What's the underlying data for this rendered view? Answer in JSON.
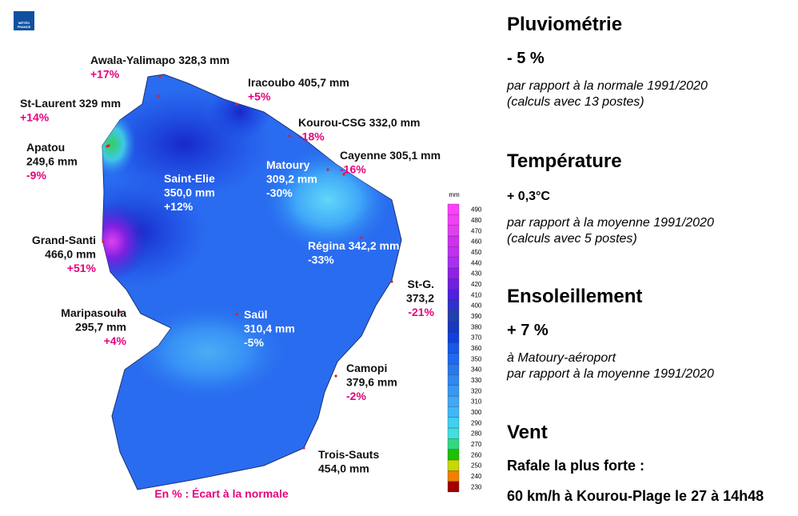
{
  "logo": [
    "MÉTÉO",
    "FRANCE"
  ],
  "map": {
    "stations": [
      {
        "label": [
          "Awala-Yalimapo 328,3 mm"
        ],
        "anomaly": "+17%"
      },
      {
        "label": [
          "Iracoubo 405,7 mm"
        ],
        "anomaly": "+5%"
      },
      {
        "label": [
          "St-Laurent 329 mm"
        ],
        "anomaly": "+14%"
      },
      {
        "label": [
          "Kourou-CSG 332,0 mm"
        ],
        "anomaly": "-18%"
      },
      {
        "label": [
          "Apatou",
          "249,6 mm"
        ],
        "anomaly": "-9%"
      },
      {
        "label": [
          "Cayenne 305,1 mm"
        ],
        "anomaly": "-16%"
      },
      {
        "label": [
          "Saint-Elie",
          "350,0 mm"
        ],
        "anomaly": "+12%"
      },
      {
        "label": [
          "Matoury",
          "309,2 mm"
        ],
        "anomaly": "-30%"
      },
      {
        "label": [
          "Grand-Santi",
          "466,0 mm"
        ],
        "anomaly": "+51%"
      },
      {
        "label": [
          "Régina 342,2 mm"
        ],
        "anomaly": "-33%"
      },
      {
        "label": [
          "St-G.",
          "373,2"
        ],
        "anomaly": "-21%"
      },
      {
        "label": [
          "Maripasoula",
          "295,7 mm"
        ],
        "anomaly": "+4%"
      },
      {
        "label": [
          "Saül",
          "310,4 mm"
        ],
        "anomaly": "-5%"
      },
      {
        "label": [
          "Camopi",
          "379,6 mm"
        ],
        "anomaly": "-2%"
      },
      {
        "label": [
          "Trois-Sauts",
          "454,0 mm"
        ]
      }
    ],
    "note": "En % : Écart à la normale",
    "scale": {
      "unit": "mm",
      "levels": [
        230,
        240,
        250,
        260,
        270,
        280,
        290,
        300,
        310,
        320,
        330,
        340,
        350,
        360,
        370,
        380,
        390,
        400,
        410,
        420,
        430,
        440,
        450,
        460,
        470,
        480,
        490
      ],
      "colors": [
        "#a00000",
        "#f08000",
        "#c8d800",
        "#20c000",
        "#30d880",
        "#40e0e0",
        "#40d0f0",
        "#40b8f8",
        "#40a8f8",
        "#3898f0",
        "#3088f0",
        "#2878f0",
        "#2068f0",
        "#1858e8",
        "#1040e0",
        "#1838c0",
        "#2040b0",
        "#3030d0",
        "#5020e0",
        "#7020e0",
        "#9020e8",
        "#a830f0",
        "#c030f0",
        "#d030f0",
        "#e040f0",
        "#f040f8",
        "#ff40ff"
      ]
    }
  },
  "panel": [
    {
      "title": "Pluviométrie",
      "value": "- 5 %",
      "notes": [
        "par rapport à la normale 1991/2020",
        "(calculs avec 13 postes)"
      ]
    },
    {
      "title": "Température",
      "value": "+ 0,3°C",
      "notes": [
        "par rapport à la moyenne 1991/2020",
        "(calculs avec 5 postes)"
      ]
    },
    {
      "title": "Ensoleillement",
      "value": "+ 7 %",
      "notes": [
        "à Matoury-aéroport",
        "par rapport à la moyenne 1991/2020"
      ]
    },
    {
      "title": "Vent",
      "lines": [
        "Rafale la plus forte :",
        "60 km/h à Kourou-Plage le 27 à 14h48"
      ]
    }
  ]
}
